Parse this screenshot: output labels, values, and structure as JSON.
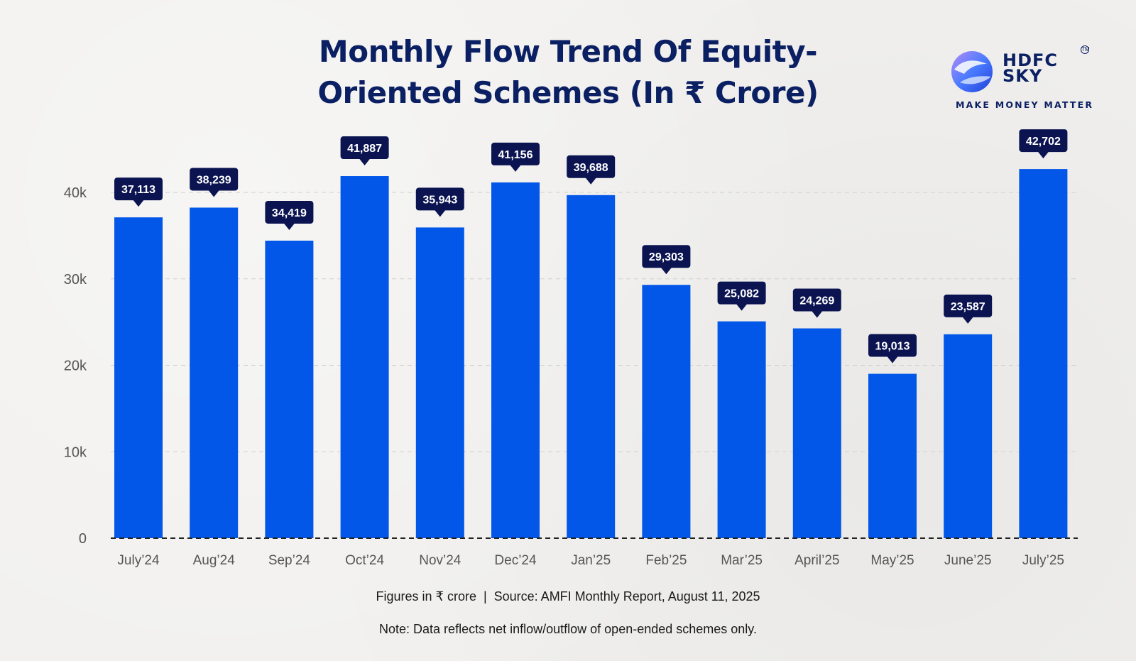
{
  "header": {
    "title_line1": "Monthly Flow Trend Of Equity-",
    "title_line2": "Oriented Schemes (In ₹ Crore)"
  },
  "brand": {
    "name_line1": "HDFC",
    "name_line2": "SKY",
    "trademark": "TM",
    "tagline": "MAKE MONEY MATTER"
  },
  "colors": {
    "bar": "#0257e8",
    "label_bg": "#0b1451",
    "title": "#0b1f63",
    "axis_text": "#555555"
  },
  "chart_data": {
    "type": "bar",
    "categories": [
      "July’24",
      "Aug’24",
      "Sep’24",
      "Oct’24",
      "Nov’24",
      "Dec’24",
      "Jan’25",
      "Feb’25",
      "Mar’25",
      "April’25",
      "May’25",
      "June’25",
      "July’25"
    ],
    "values": [
      37113,
      38239,
      34419,
      41887,
      35943,
      41156,
      39688,
      29303,
      25082,
      24269,
      19013,
      23587,
      42702
    ],
    "value_labels": [
      "37,113",
      "38,239",
      "34,419",
      "41,887",
      "35,943",
      "41,156",
      "39,688",
      "29,303",
      "25,082",
      "24,269",
      "19,013",
      "23,587",
      "42,702"
    ],
    "title": "Monthly Flow Trend Of Equity-Oriented Schemes (In ₹ Crore)",
    "xlabel": "",
    "ylabel": "",
    "yticks": [
      0,
      10000,
      20000,
      30000,
      40000
    ],
    "ytick_labels": [
      "0",
      "10k",
      "20k",
      "30k",
      "40k"
    ],
    "ylim": [
      0,
      40000
    ],
    "grid": true,
    "legend": "none"
  },
  "footer": {
    "source": "Figures in ₹ crore  |  Source: AMFI Monthly Report, August 11, 2025",
    "note": "Note: Data reflects net inflow/outflow of open-ended schemes only."
  }
}
